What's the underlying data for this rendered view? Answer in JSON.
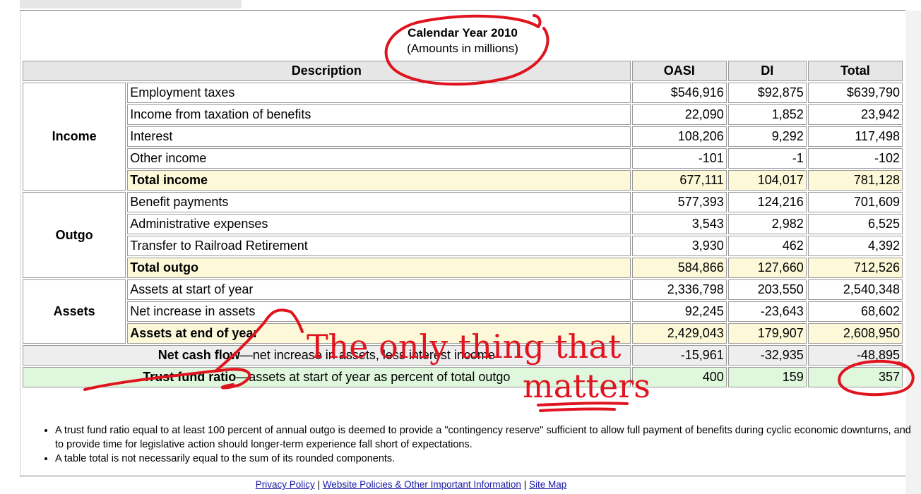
{
  "caption": {
    "line1": "Calendar Year 2010",
    "line2": "(Amounts in millions)"
  },
  "headers": {
    "description": "Description",
    "oasi": "OASI",
    "di": "DI",
    "total": "Total"
  },
  "groups": {
    "income": "Income",
    "outgo": "Outgo",
    "assets": "Assets"
  },
  "rows": {
    "employment_taxes": {
      "label": "Employment taxes",
      "oasi": "$546,916",
      "di": "$92,875",
      "total": "$639,790"
    },
    "taxation_benefits": {
      "label": "Income from taxation of benefits",
      "oasi": "22,090",
      "di": "1,852",
      "total": "23,942"
    },
    "interest": {
      "label": "Interest",
      "oasi": "108,206",
      "di": "9,292",
      "total": "117,498"
    },
    "other_income": {
      "label": "Other income",
      "oasi": "-101",
      "di": "-1",
      "total": "-102"
    },
    "total_income": {
      "label": "Total income",
      "oasi": "677,111",
      "di": "104,017",
      "total": "781,128"
    },
    "benefit_payments": {
      "label": "Benefit payments",
      "oasi": "577,393",
      "di": "124,216",
      "total": "701,609"
    },
    "admin_expenses": {
      "label": "Administrative expenses",
      "oasi": "3,543",
      "di": "2,982",
      "total": "6,525"
    },
    "railroad": {
      "label": "Transfer to Railroad Retirement",
      "oasi": "3,930",
      "di": "462",
      "total": "4,392"
    },
    "total_outgo": {
      "label": "Total outgo",
      "oasi": "584,866",
      "di": "127,660",
      "total": "712,526"
    },
    "assets_start": {
      "label": "Assets at start of year",
      "oasi": "2,336,798",
      "di": "203,550",
      "total": "2,540,348"
    },
    "net_increase": {
      "label": "Net increase in assets",
      "oasi": "92,245",
      "di": "-23,643",
      "total": "68,602"
    },
    "assets_end": {
      "label": "Assets at end of year",
      "oasi": "2,429,043",
      "di": "179,907",
      "total": "2,608,950"
    },
    "net_cash_flow": {
      "label_bold": "Net cash flow",
      "label_rest": "—net increase in assets, less interest income",
      "oasi": "-15,961",
      "di": "-32,935",
      "total": "-48,895"
    },
    "trust_fund_ratio": {
      "label_bold": "Trust fund ratio",
      "label_rest": "—assets at start of year as percent of total outgo",
      "oasi": "400",
      "di": "159",
      "total": "357"
    }
  },
  "notes": [
    "A trust fund ratio equal to at least 100 percent of annual outgo is deemed to provide a \"contingency reserve\" sufficient to allow full payment of benefits during cyclic economic downturns, and to provide time for legislative action should longer-term experience fall short of expectations.",
    "A table total is not necessarily equal to the sum of its rounded components."
  ],
  "footer": {
    "privacy": "Privacy Policy",
    "website_policies": "Website Policies & Other Important Information",
    "site_map": "Site Map",
    "separator": "|"
  },
  "annotation": {
    "line1": "The only thing that",
    "line2": "matters",
    "color": "#e0141e"
  }
}
